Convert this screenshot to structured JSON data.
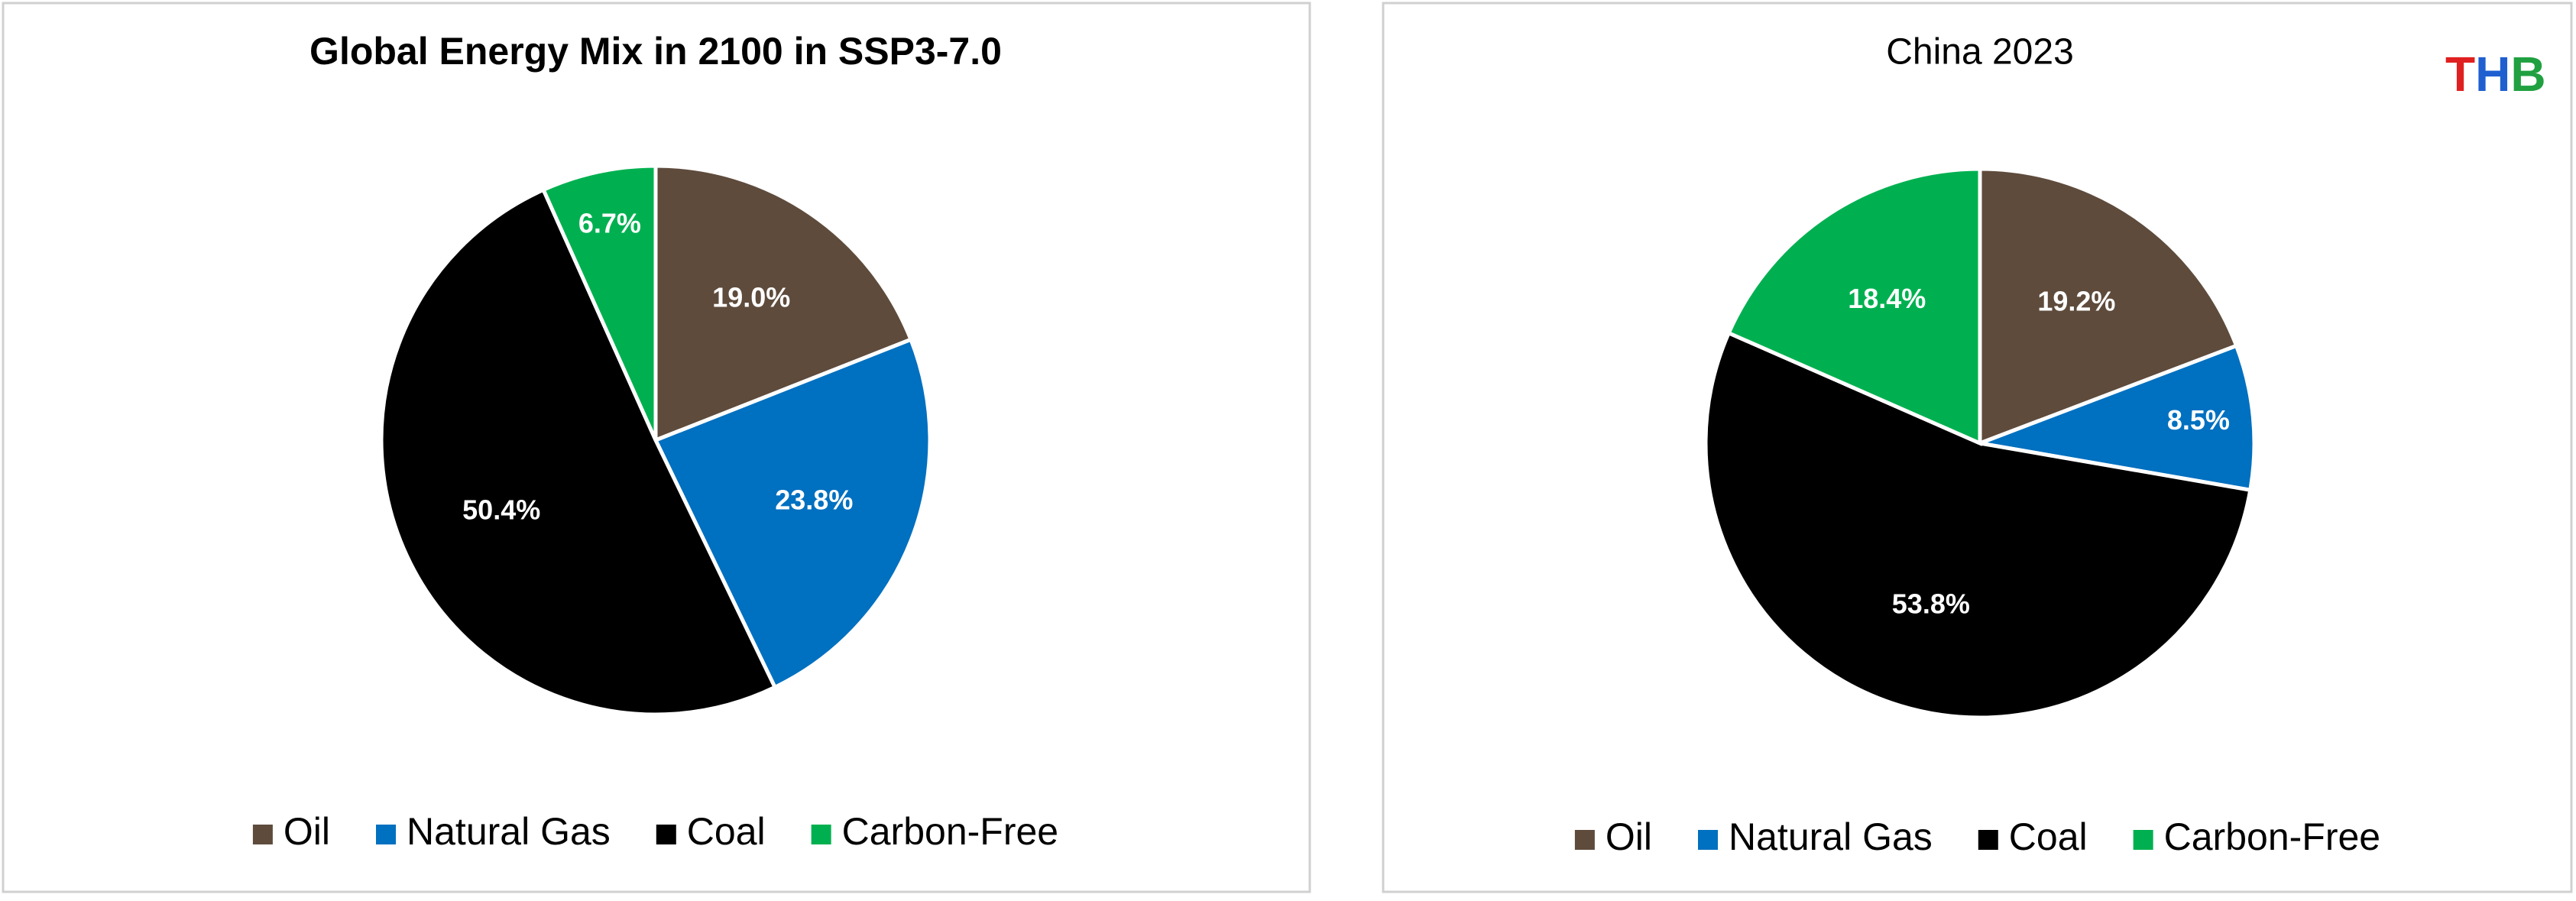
{
  "chart_data": [
    {
      "type": "pie",
      "title": "Global Energy Mix in 2100 in SSP3-7.0",
      "categories": [
        "Oil",
        "Natural Gas",
        "Coal",
        "Carbon-Free"
      ],
      "values": [
        19.0,
        23.8,
        50.4,
        6.7
      ],
      "value_labels": [
        "19.0%",
        "23.8%",
        "50.4%",
        "6.7%"
      ],
      "colors": [
        "#5e4b3c",
        "#0070c0",
        "#000000",
        "#00b050"
      ]
    },
    {
      "type": "pie",
      "title": "China 2023",
      "categories": [
        "Oil",
        "Natural Gas",
        "Coal",
        "Carbon-Free"
      ],
      "values": [
        19.2,
        8.5,
        53.8,
        18.4
      ],
      "value_labels": [
        "19.2%",
        "8.5%",
        "53.8%",
        "18.4%"
      ],
      "colors": [
        "#5e4b3c",
        "#0070c0",
        "#000000",
        "#00b050"
      ]
    }
  ],
  "logo": [
    "T",
    "H",
    "B"
  ]
}
